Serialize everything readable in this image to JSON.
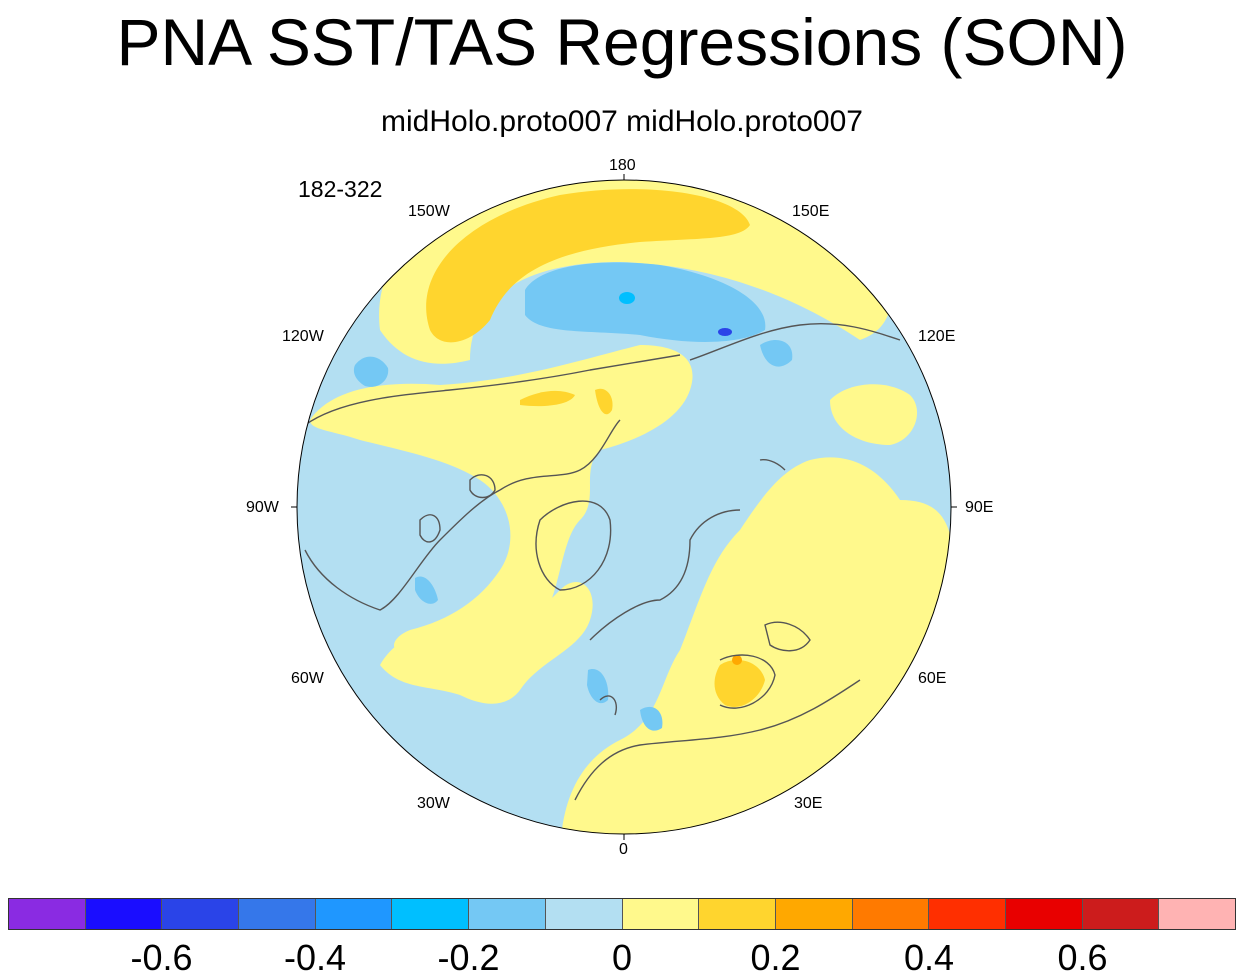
{
  "title": "PNA SST/TAS Regressions (SON)",
  "subtitle": "midHolo.proto007  midHolo.proto007",
  "year_range": "182-322",
  "longitude_labels": {
    "top": "180",
    "top_right": "150E",
    "right_upper": "120E",
    "right": "90E",
    "right_lower": "60E",
    "bottom_right": "30E",
    "bottom": "0",
    "bottom_left": "30W",
    "left_lower": "60W",
    "left": "90W",
    "left_upper": "120W",
    "top_left": "150W"
  },
  "colorbar": {
    "colors": [
      "#8a2be2",
      "#1a0dff",
      "#2a44e8",
      "#3577ea",
      "#1f97ff",
      "#00bfff",
      "#74c8f4",
      "#b3dff2",
      "#fff98c",
      "#ffd52e",
      "#ffa800",
      "#ff7a00",
      "#ff2f00",
      "#e80000",
      "#cc1c1c",
      "#ffb3b3"
    ],
    "tick_labels": [
      "-0.6",
      "-0.4",
      "-0.2",
      "0",
      "0.2",
      "0.4",
      "0.6"
    ]
  },
  "field_colors": {
    "weak_negative": "#b3dff2",
    "moderate_negative": "#74c8f4",
    "strong_negative": "#00bfff",
    "weak_positive": "#fff98c",
    "moderate_positive": "#ffd52e",
    "strong_positive": "#ffa800",
    "coastline": "#555555"
  }
}
